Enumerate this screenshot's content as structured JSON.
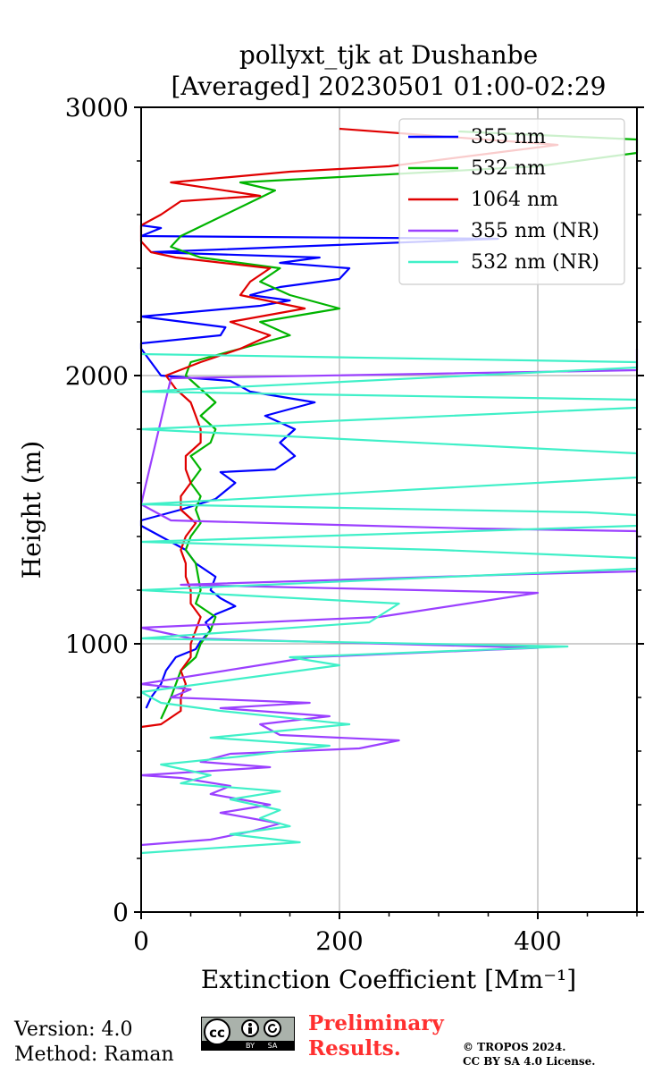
{
  "chart_data": {
    "type": "line",
    "title": [
      "pollyxt_tjk at Dushanbe",
      "[Averaged] 20230501 01:00-02:29"
    ],
    "xlabel": "Extinction Coefficient [Mm⁻¹]",
    "ylabel": "Height (m)",
    "xlim": [
      0,
      500
    ],
    "ylim": [
      0,
      3000
    ],
    "x_ticks": [
      0,
      200,
      400
    ],
    "x_tick_labels": [
      "0",
      "200",
      "400"
    ],
    "y_ticks": [
      0,
      1000,
      2000,
      3000
    ],
    "y_tick_labels": [
      "0",
      "1000",
      "2000",
      "3000"
    ],
    "grid": true,
    "legend_position": "top-right",
    "series": [
      {
        "name": "355 nm",
        "color": "#0000ff",
        "points": [
          [
            5,
            760
          ],
          [
            10,
            800
          ],
          [
            20,
            850
          ],
          [
            25,
            900
          ],
          [
            35,
            950
          ],
          [
            55,
            980
          ],
          [
            60,
            1010
          ],
          [
            70,
            1050
          ],
          [
            65,
            1080
          ],
          [
            75,
            1110
          ],
          [
            95,
            1140
          ],
          [
            80,
            1170
          ],
          [
            70,
            1200
          ],
          [
            75,
            1250
          ],
          [
            55,
            1300
          ],
          [
            45,
            1350
          ],
          [
            0,
            1440
          ],
          [
            0,
            1460
          ],
          [
            40,
            1500
          ],
          [
            75,
            1540
          ],
          [
            95,
            1600
          ],
          [
            80,
            1640
          ],
          [
            135,
            1650
          ],
          [
            155,
            1700
          ],
          [
            140,
            1750
          ],
          [
            155,
            1800
          ],
          [
            125,
            1850
          ],
          [
            175,
            1900
          ],
          [
            110,
            1940
          ],
          [
            90,
            1980
          ],
          [
            20,
            2000
          ],
          [
            10,
            2050
          ],
          [
            0,
            2100
          ],
          [
            0,
            2120
          ],
          [
            80,
            2150
          ],
          [
            85,
            2180
          ],
          [
            0,
            2220
          ],
          [
            120,
            2260
          ],
          [
            150,
            2280
          ],
          [
            110,
            2300
          ],
          [
            140,
            2330
          ],
          [
            200,
            2360
          ],
          [
            210,
            2400
          ],
          [
            140,
            2420
          ],
          [
            180,
            2440
          ],
          [
            10,
            2460
          ],
          [
            360,
            2510
          ],
          [
            0,
            2520
          ],
          [
            20,
            2550
          ],
          [
            0,
            2560
          ]
        ]
      },
      {
        "name": "532 nm",
        "color": "#00b400",
        "points": [
          [
            20,
            720
          ],
          [
            30,
            800
          ],
          [
            40,
            900
          ],
          [
            55,
            950
          ],
          [
            60,
            1000
          ],
          [
            70,
            1050
          ],
          [
            75,
            1100
          ],
          [
            55,
            1150
          ],
          [
            60,
            1200
          ],
          [
            55,
            1300
          ],
          [
            45,
            1350
          ],
          [
            50,
            1400
          ],
          [
            60,
            1450
          ],
          [
            55,
            1500
          ],
          [
            60,
            1550
          ],
          [
            50,
            1600
          ],
          [
            60,
            1650
          ],
          [
            50,
            1700
          ],
          [
            70,
            1750
          ],
          [
            75,
            1800
          ],
          [
            60,
            1850
          ],
          [
            75,
            1900
          ],
          [
            60,
            1950
          ],
          [
            45,
            2000
          ],
          [
            50,
            2050
          ],
          [
            100,
            2100
          ],
          [
            150,
            2150
          ],
          [
            120,
            2200
          ],
          [
            200,
            2250
          ],
          [
            150,
            2300
          ],
          [
            120,
            2350
          ],
          [
            140,
            2400
          ],
          [
            60,
            2440
          ],
          [
            30,
            2480
          ],
          [
            40,
            2520
          ],
          [
            135,
            2690
          ],
          [
            100,
            2720
          ],
          [
            400,
            2780
          ],
          [
            500,
            2830
          ],
          [
            500,
            2880
          ],
          [
            320,
            2910
          ]
        ]
      },
      {
        "name": "1064 nm",
        "color": "#e00000",
        "points": [
          [
            0,
            690
          ],
          [
            20,
            700
          ],
          [
            40,
            750
          ],
          [
            40,
            800
          ],
          [
            45,
            850
          ],
          [
            40,
            900
          ],
          [
            50,
            950
          ],
          [
            50,
            1000
          ],
          [
            55,
            1050
          ],
          [
            60,
            1100
          ],
          [
            50,
            1150
          ],
          [
            50,
            1200
          ],
          [
            45,
            1250
          ],
          [
            45,
            1300
          ],
          [
            40,
            1350
          ],
          [
            45,
            1400
          ],
          [
            55,
            1450
          ],
          [
            40,
            1500
          ],
          [
            40,
            1550
          ],
          [
            50,
            1600
          ],
          [
            45,
            1650
          ],
          [
            45,
            1700
          ],
          [
            60,
            1750
          ],
          [
            60,
            1800
          ],
          [
            55,
            1850
          ],
          [
            50,
            1900
          ],
          [
            35,
            1950
          ],
          [
            25,
            2000
          ],
          [
            60,
            2050
          ],
          [
            100,
            2100
          ],
          [
            130,
            2150
          ],
          [
            90,
            2200
          ],
          [
            165,
            2250
          ],
          [
            100,
            2300
          ],
          [
            110,
            2350
          ],
          [
            130,
            2400
          ],
          [
            35,
            2440
          ],
          [
            10,
            2460
          ],
          [
            0,
            2500
          ],
          [
            0,
            2560
          ],
          [
            20,
            2600
          ],
          [
            40,
            2650
          ],
          [
            120,
            2670
          ],
          [
            30,
            2720
          ],
          [
            150,
            2760
          ],
          [
            250,
            2780
          ],
          [
            420,
            2860
          ],
          [
            200,
            2920
          ]
        ]
      },
      {
        "name": "355 nm (NR)",
        "color": "#9b40ff",
        "points": [
          [
            0,
            250
          ],
          [
            70,
            270
          ],
          [
            110,
            300
          ],
          [
            140,
            330
          ],
          [
            80,
            370
          ],
          [
            130,
            400
          ],
          [
            70,
            440
          ],
          [
            90,
            470
          ],
          [
            40,
            500
          ],
          [
            0,
            510
          ],
          [
            130,
            540
          ],
          [
            60,
            560
          ],
          [
            90,
            590
          ],
          [
            220,
            610
          ],
          [
            260,
            640
          ],
          [
            140,
            660
          ],
          [
            120,
            700
          ],
          [
            190,
            730
          ],
          [
            80,
            760
          ],
          [
            170,
            780
          ],
          [
            30,
            800
          ],
          [
            50,
            830
          ],
          [
            0,
            850
          ],
          [
            170,
            950
          ],
          [
            400,
            985
          ],
          [
            50,
            1020
          ],
          [
            0,
            1060
          ],
          [
            240,
            1100
          ],
          [
            400,
            1190
          ],
          [
            40,
            1220
          ],
          [
            390,
            1260
          ],
          [
            500,
            1270
          ],
          [
            500,
            1330
          ],
          [
            500,
            1400
          ],
          [
            500,
            1420
          ],
          [
            330,
            1430
          ],
          [
            30,
            1460
          ],
          [
            0,
            1520
          ],
          [
            30,
            1990
          ],
          [
            500,
            2020
          ],
          [
            500,
            2060
          ],
          [
            500,
            2100
          ]
        ]
      },
      {
        "name": "532 nm (NR)",
        "color": "#40f0c8",
        "points": [
          [
            0,
            220
          ],
          [
            160,
            260
          ],
          [
            90,
            290
          ],
          [
            150,
            320
          ],
          [
            120,
            350
          ],
          [
            140,
            380
          ],
          [
            90,
            420
          ],
          [
            140,
            450
          ],
          [
            40,
            480
          ],
          [
            70,
            510
          ],
          [
            20,
            550
          ],
          [
            100,
            580
          ],
          [
            190,
            620
          ],
          [
            70,
            650
          ],
          [
            210,
            700
          ],
          [
            80,
            750
          ],
          [
            20,
            780
          ],
          [
            0,
            820
          ],
          [
            200,
            920
          ],
          [
            150,
            950
          ],
          [
            430,
            990
          ],
          [
            0,
            1020
          ],
          [
            230,
            1080
          ],
          [
            260,
            1150
          ],
          [
            0,
            1200
          ],
          [
            500,
            1280
          ],
          [
            500,
            1320
          ],
          [
            300,
            1350
          ],
          [
            0,
            1380
          ],
          [
            500,
            1440
          ],
          [
            500,
            1480
          ],
          [
            450,
            1490
          ],
          [
            0,
            1520
          ],
          [
            500,
            1620
          ],
          [
            500,
            1690
          ],
          [
            500,
            1710
          ],
          [
            0,
            1800
          ],
          [
            500,
            1880
          ],
          [
            500,
            1910
          ],
          [
            0,
            1940
          ],
          [
            500,
            2030
          ],
          [
            500,
            2050
          ],
          [
            0,
            2080
          ]
        ]
      }
    ]
  },
  "footer": {
    "version": "Version: 4.0",
    "method": "Method: Raman",
    "preliminary": [
      "Preliminary",
      "Results."
    ],
    "copyright": [
      "© TROPOS 2024.",
      "CC BY SA 4.0 License."
    ],
    "license_badge": {
      "cc": "cc",
      "by": "BY",
      "sa": "SA"
    }
  }
}
